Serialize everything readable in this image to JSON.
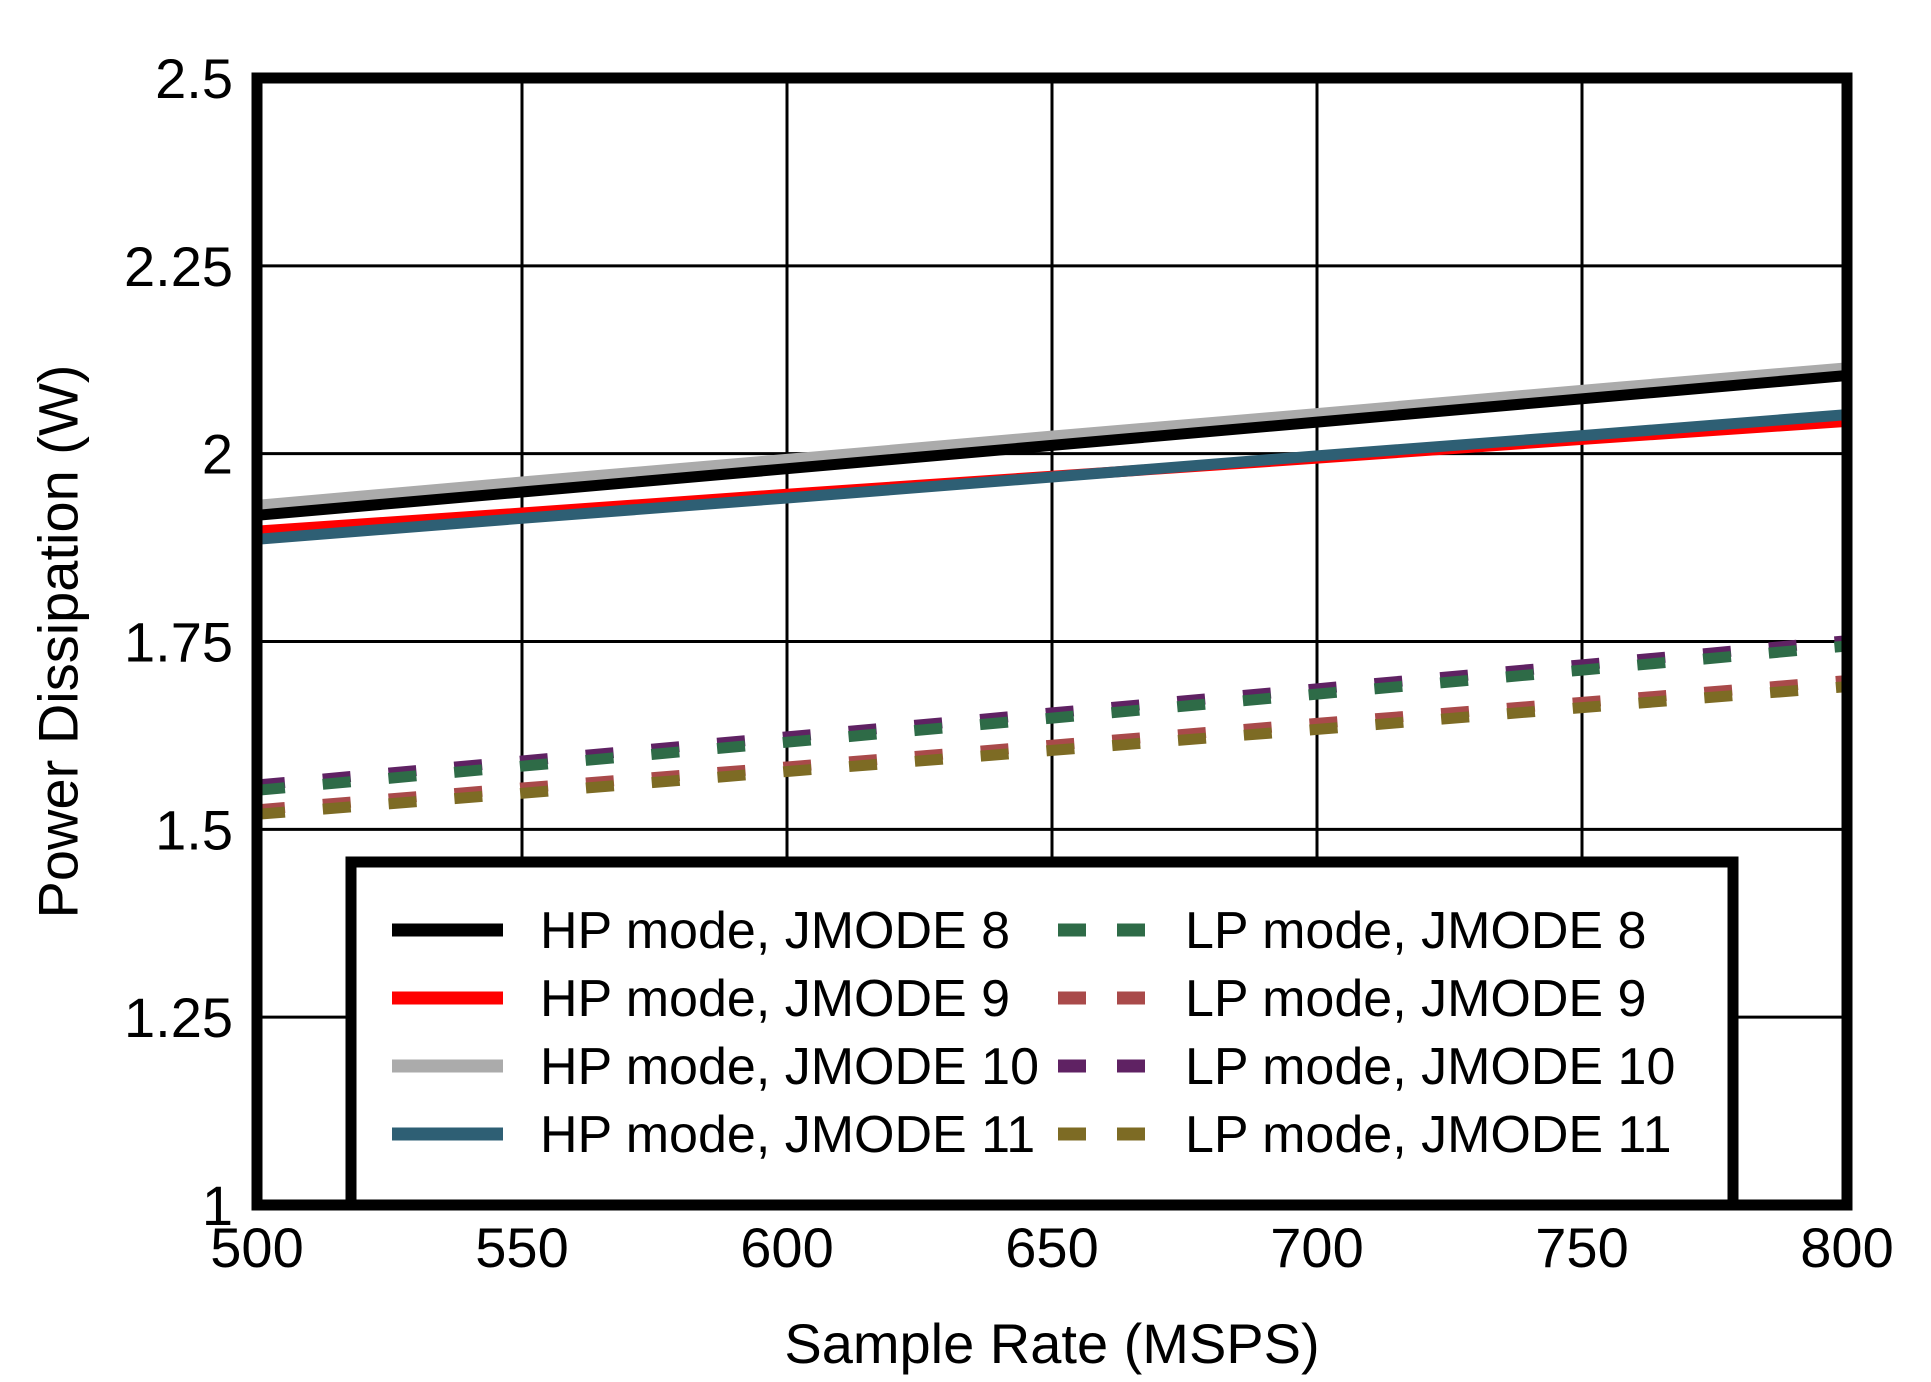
{
  "figure": {
    "background_color": "#ffffff",
    "frame_color": "#000000",
    "grid_color": "#000000"
  },
  "chart_data": {
    "type": "line",
    "title": "",
    "xlabel": "Sample Rate (MSPS)",
    "ylabel": "Power Dissipation (W)",
    "xlim": [
      500,
      800
    ],
    "ylim": [
      1,
      2.5
    ],
    "x_ticks": [
      500,
      550,
      600,
      650,
      700,
      750,
      800
    ],
    "x_tick_labels": [
      "500",
      "550",
      "600",
      "650",
      "700",
      "750",
      "800"
    ],
    "y_ticks": [
      1,
      1.25,
      1.5,
      1.75,
      2,
      2.25,
      2.5
    ],
    "y_tick_labels": [
      "1",
      "1.25",
      "1.5",
      "1.75",
      "2",
      "2.25",
      "2.5"
    ],
    "grid": true,
    "legend_position": "inside-bottom-left",
    "x": [
      500,
      550,
      600,
      650,
      700,
      750,
      800
    ],
    "series": [
      {
        "name": "HP mode, JMODE 8",
        "color": "#000000",
        "style": "solid",
        "width": 11,
        "values": [
          1.918,
          1.949,
          1.98,
          2.011,
          2.042,
          2.073,
          2.104
        ]
      },
      {
        "name": "HP mode, JMODE 9",
        "color": "#FF0000",
        "style": "solid",
        "width": 11,
        "values": [
          1.897,
          1.921,
          1.946,
          1.97,
          1.994,
          2.019,
          2.043
        ]
      },
      {
        "name": "HP mode, JMODE 10",
        "color": "#ABABAB",
        "style": "solid",
        "width": 13,
        "values": [
          1.93,
          1.961,
          1.991,
          2.022,
          2.052,
          2.083,
          2.113
        ]
      },
      {
        "name": "HP mode, JMODE 11",
        "color": "#2E5F74",
        "style": "solid",
        "width": 11,
        "values": [
          1.886,
          1.914,
          1.941,
          1.969,
          1.997,
          2.024,
          2.052
        ]
      },
      {
        "name": "LP mode, JMODE 8",
        "color": "#2E6B47",
        "style": "dashed",
        "width": 11,
        "values": [
          1.552,
          1.584,
          1.616,
          1.648,
          1.68,
          1.712,
          1.744
        ]
      },
      {
        "name": "LP mode, JMODE 9",
        "color": "#A94A4A",
        "style": "dashed",
        "width": 11,
        "values": [
          1.526,
          1.555,
          1.583,
          1.612,
          1.641,
          1.669,
          1.698
        ]
      },
      {
        "name": "LP mode, JMODE 10",
        "color": "#5F2263",
        "style": "dashed",
        "width": 11,
        "values": [
          1.559,
          1.591,
          1.623,
          1.655,
          1.687,
          1.719,
          1.751
        ]
      },
      {
        "name": "LP mode, JMODE 11",
        "color": "#7D6B24",
        "style": "dashed",
        "width": 11,
        "values": [
          1.52,
          1.548,
          1.577,
          1.605,
          1.633,
          1.662,
          1.69
        ]
      }
    ],
    "draw_order": [
      2,
      0,
      1,
      3,
      6,
      4,
      5,
      7
    ],
    "legend_columns": [
      [
        "HP mode, JMODE 8",
        "HP mode, JMODE 9",
        "HP mode, JMODE 10",
        "HP mode, JMODE 11"
      ],
      [
        "LP mode, JMODE 8",
        "LP mode, JMODE 9",
        "LP mode, JMODE 10",
        "LP mode, JMODE 11"
      ]
    ]
  }
}
